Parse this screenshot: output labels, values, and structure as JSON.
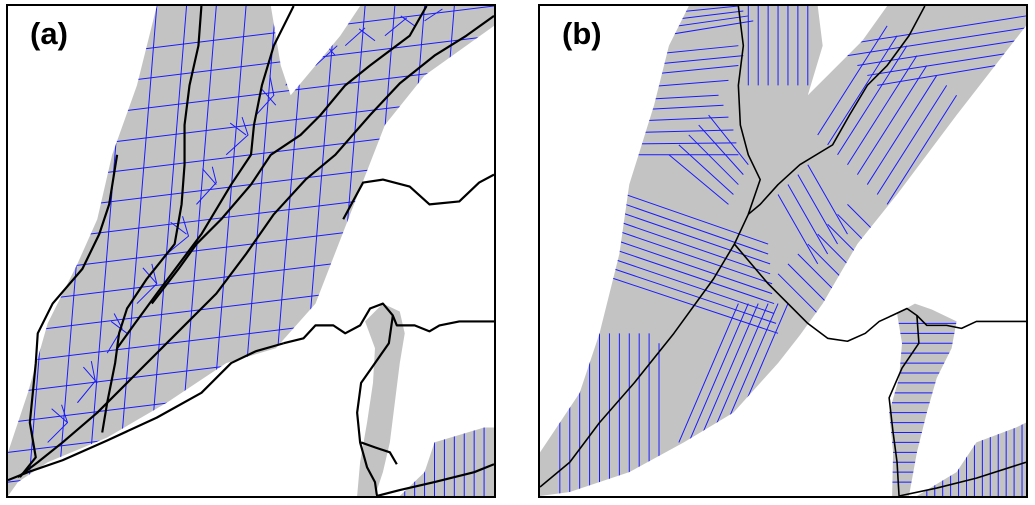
{
  "figure": {
    "panels": [
      {
        "id": "a",
        "label": "(a)"
      },
      {
        "id": "b",
        "label": "(b)"
      }
    ]
  },
  "colors": {
    "catchment": "#c3c3c3",
    "flow_lines": "#1a1aff",
    "main_channels": "#000000",
    "frame": "#000000",
    "background": "#ffffff"
  }
}
